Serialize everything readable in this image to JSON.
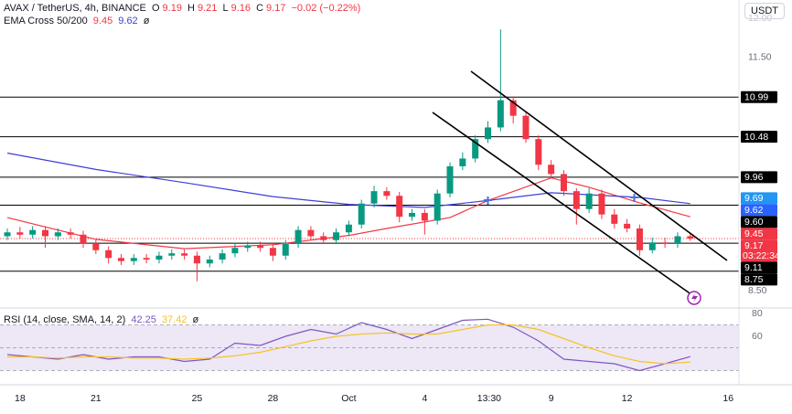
{
  "chart_data": {
    "type": "candlestick",
    "header": {
      "symbol": "AVAX / TetherUS, 4h, BINANCE",
      "ohlc": [
        {
          "key": "O",
          "value": 9.19
        },
        {
          "key": "H",
          "value": 9.21
        },
        {
          "key": "L",
          "value": 9.16
        },
        {
          "key": "C",
          "value": 9.17
        }
      ],
      "change": "−0.02 (−0.22%)"
    },
    "indicator": "EMA Cross 50/200",
    "toggle": "ø",
    "currency": "USDT",
    "up_color": "#089981",
    "down_color": "#f23645",
    "candles": {
      "open": [
        9.2,
        9.25,
        9.22,
        9.28,
        9.2,
        9.25,
        9.22,
        9.1,
        9.02,
        8.92,
        8.88,
        8.92,
        8.9,
        8.95,
        8.98,
        8.95,
        8.85,
        8.9,
        8.98,
        9.05,
        9.08,
        9.05,
        8.95,
        9.1,
        9.28,
        9.2,
        9.15,
        9.25,
        9.35,
        9.62,
        9.78,
        9.72,
        9.45,
        9.5,
        9.4,
        9.75,
        10.1,
        10.2,
        10.45,
        10.6,
        10.95,
        10.75,
        10.45,
        10.12,
        10.0,
        9.78,
        9.55,
        9.75,
        9.48,
        9.36,
        9.3,
        9.02,
        9.12,
        9.1,
        9.2
      ],
      "high": [
        9.3,
        9.32,
        9.33,
        9.33,
        9.3,
        9.3,
        9.27,
        9.15,
        9.07,
        8.97,
        8.97,
        8.97,
        9.0,
        9.03,
        9.03,
        9.0,
        8.95,
        9.03,
        9.1,
        9.13,
        9.13,
        9.1,
        9.15,
        9.33,
        9.33,
        9.25,
        9.3,
        9.4,
        9.67,
        9.85,
        9.83,
        9.77,
        9.55,
        9.55,
        9.8,
        10.15,
        10.28,
        10.5,
        10.68,
        11.86,
        11.0,
        10.8,
        10.5,
        10.18,
        10.05,
        9.82,
        9.82,
        9.8,
        9.55,
        9.42,
        9.35,
        9.18,
        9.18,
        9.25,
        9.24
      ],
      "low": [
        9.15,
        9.17,
        9.17,
        9.05,
        9.15,
        9.17,
        9.05,
        8.97,
        8.85,
        8.83,
        8.83,
        8.85,
        8.85,
        8.9,
        8.9,
        8.62,
        8.8,
        8.85,
        8.93,
        9.0,
        9.0,
        8.88,
        8.9,
        9.05,
        9.15,
        9.1,
        9.1,
        9.2,
        9.3,
        9.57,
        9.67,
        9.38,
        9.4,
        9.22,
        9.35,
        9.7,
        10.05,
        10.15,
        10.4,
        10.55,
        10.65,
        10.4,
        10.05,
        9.95,
        9.72,
        9.35,
        9.5,
        9.42,
        9.3,
        9.25,
        8.95,
        8.98,
        9.05,
        9.05,
        9.14
      ],
      "close": [
        9.25,
        9.22,
        9.28,
        9.2,
        9.25,
        9.22,
        9.1,
        9.02,
        8.92,
        8.88,
        8.92,
        8.9,
        8.95,
        8.98,
        8.95,
        8.85,
        8.9,
        8.98,
        9.05,
        9.08,
        9.05,
        8.95,
        9.1,
        9.28,
        9.2,
        9.15,
        9.25,
        9.35,
        9.62,
        9.78,
        9.72,
        9.45,
        9.5,
        9.4,
        9.75,
        10.1,
        10.2,
        10.45,
        10.6,
        10.95,
        10.75,
        10.45,
        10.12,
        10.0,
        9.78,
        9.55,
        9.75,
        9.48,
        9.36,
        9.3,
        9.02,
        9.12,
        9.1,
        9.2,
        9.17
      ]
    },
    "ema": [
      {
        "color": "#f23645",
        "x": [
          0,
          7,
          14,
          21,
          27,
          30,
          35,
          38,
          43,
          46,
          50,
          54
        ],
        "values": [
          9.44,
          9.16,
          9.04,
          9.09,
          9.21,
          9.3,
          9.44,
          9.66,
          9.95,
          9.83,
          9.63,
          9.45
        ]
      },
      {
        "color": "#3f3fd8",
        "x": [
          0,
          7,
          14,
          21,
          27,
          33,
          38,
          43,
          50,
          54
        ],
        "values": [
          10.27,
          10.06,
          9.89,
          9.71,
          9.61,
          9.57,
          9.66,
          9.76,
          9.7,
          9.62
        ]
      }
    ],
    "ema_tag": {
      "value": 9.69,
      "color": "#2196f3"
    },
    "levels": [
      10.99,
      10.48,
      9.96,
      {
        "value": 9.6,
        "label": "9.60"
      },
      9.11,
      8.75
    ],
    "countdown": "03:22:34",
    "xlim": [
      -0.58,
      57.85
    ],
    "ylim": [
      8.3,
      12.24
    ],
    "yticks": [
      {
        "value": 12,
        "label": "12.00"
      },
      {
        "value": 11.5,
        "label": "11.50"
      },
      {
        "value": 8.5,
        "label": "8.50"
      }
    ],
    "xticks": [
      {
        "value": 1,
        "label": "18"
      },
      {
        "value": 7,
        "label": "21"
      },
      {
        "value": 15,
        "label": "25"
      },
      {
        "value": 21,
        "label": "28"
      },
      {
        "value": 27,
        "label": "Oct"
      },
      {
        "value": 33,
        "label": "4"
      },
      {
        "value": 38.1,
        "label": "13:30"
      },
      {
        "value": 43,
        "label": "9"
      },
      {
        "value": 49,
        "label": "12"
      },
      {
        "value": 57,
        "label": "16"
      }
    ],
    "rsi": {
      "title": "RSI (14, close, SMA, 14, 2)",
      "ylim": [
        20,
        84
      ],
      "yticks": [
        80,
        60
      ],
      "band": [
        30,
        70
      ],
      "mid": 50,
      "band_color": "#ede7f6",
      "series": [
        {
          "color": "#7e57c2",
          "x": [
            0,
            2,
            4,
            6,
            8,
            10,
            12,
            14,
            16,
            18,
            20,
            22,
            24,
            26,
            28,
            30,
            32,
            34,
            36,
            38,
            40,
            42,
            44,
            46,
            48,
            50,
            52,
            54
          ],
          "values": [
            44,
            42,
            40,
            44,
            40,
            42,
            42,
            38,
            40,
            54,
            52,
            60,
            66,
            62,
            72,
            66,
            58,
            66,
            74,
            75,
            68,
            56,
            40,
            38,
            36,
            30,
            36,
            42.25
          ]
        },
        {
          "color": "#f7c325",
          "x": [
            0,
            2,
            4,
            6,
            8,
            10,
            12,
            14,
            16,
            18,
            20,
            22,
            24,
            26,
            28,
            30,
            32,
            34,
            36,
            38,
            40,
            42,
            44,
            46,
            48,
            50,
            52,
            54
          ],
          "values": [
            42,
            42,
            41,
            42,
            42,
            41,
            41,
            40,
            41,
            43,
            46,
            51,
            56,
            60,
            62,
            63,
            62,
            62,
            66,
            70,
            70,
            66,
            58,
            50,
            43,
            38,
            36,
            37.42
          ]
        }
      ]
    }
  }
}
